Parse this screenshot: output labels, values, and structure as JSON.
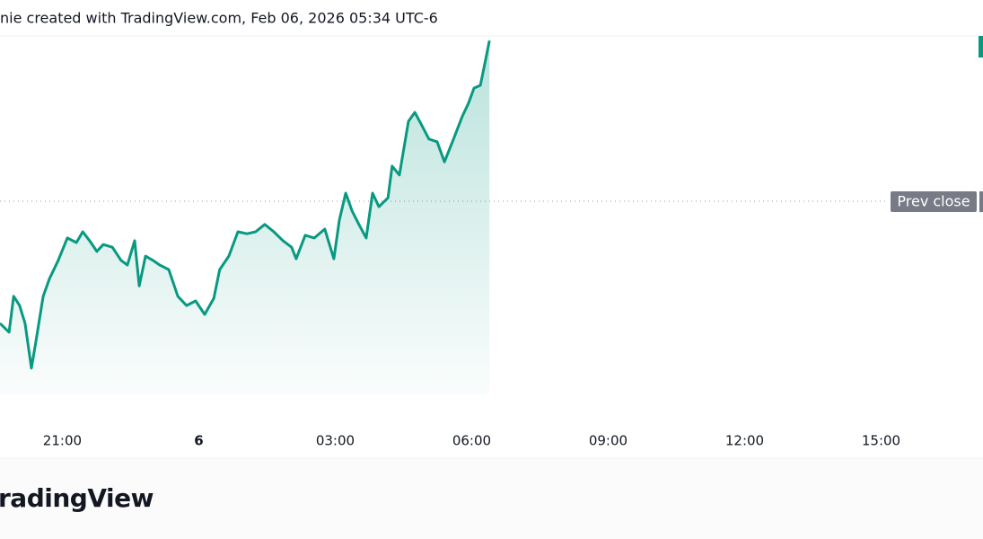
{
  "chart_data": {
    "type": "line",
    "header": "nie created with TradingView.com, Feb 06, 2026 05:34 UTC-6",
    "brand": "radingView",
    "prev_close_label": "Prev close",
    "prev_close": 57.2,
    "color": "#089981",
    "xlim": [
      19.63,
      41.24
    ],
    "ylim": [
      0,
      100
    ],
    "xticks": [
      {
        "value": 21,
        "label": "21:00"
      },
      {
        "value": 24,
        "label": "6"
      },
      {
        "value": 27,
        "label": "03:00"
      },
      {
        "value": 30,
        "label": "06:00"
      },
      {
        "value": 33,
        "label": "09:00"
      },
      {
        "value": 36,
        "label": "12:00"
      },
      {
        "value": 39,
        "label": "15:00"
      }
    ],
    "x": [
      19.63,
      19.83,
      19.93,
      20.06,
      20.18,
      20.32,
      20.42,
      20.58,
      20.72,
      20.91,
      21.11,
      21.31,
      21.45,
      21.6,
      21.76,
      21.9,
      22.1,
      22.29,
      22.43,
      22.59,
      22.69,
      22.83,
      22.99,
      23.14,
      23.34,
      23.54,
      23.73,
      23.93,
      24.13,
      24.33,
      24.46,
      24.66,
      24.86,
      25.06,
      25.25,
      25.45,
      25.65,
      25.85,
      26.04,
      26.14,
      26.34,
      26.54,
      26.77,
      26.97,
      27.09,
      27.23,
      27.37,
      27.52,
      27.68,
      27.82,
      27.96,
      28.16,
      28.25,
      28.41,
      28.61,
      28.75,
      28.91,
      29.06,
      29.24,
      29.4,
      29.6,
      29.79,
      29.93,
      30.05,
      30.19,
      30.29,
      30.39
    ],
    "values": [
      25.6,
      23.3,
      32.6,
      30.2,
      25.6,
      14.0,
      20.9,
      32.6,
      37.2,
      41.9,
      47.7,
      46.5,
      49.3,
      47.0,
      44.2,
      46.0,
      45.3,
      41.9,
      40.7,
      47.0,
      35.3,
      43.0,
      41.9,
      40.7,
      39.5,
      32.6,
      30.2,
      31.4,
      27.9,
      32.1,
      39.5,
      43.0,
      49.3,
      48.8,
      49.3,
      51.2,
      49.3,
      47.0,
      45.3,
      42.3,
      48.4,
      47.7,
      50.0,
      42.3,
      52.3,
      59.3,
      54.7,
      51.2,
      47.7,
      59.3,
      55.8,
      58.1,
      66.3,
      64.0,
      77.9,
      80.2,
      76.7,
      73.3,
      72.6,
      67.4,
      73.3,
      79.1,
      82.6,
      86.5,
      87.2,
      93.0,
      98.8
    ]
  }
}
